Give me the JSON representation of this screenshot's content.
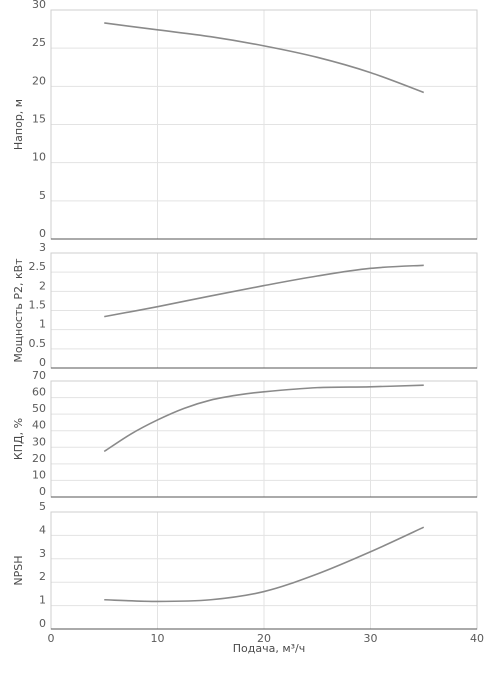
{
  "chart_data": [
    {
      "type": "line",
      "ylabel": "Напор, м",
      "ylim": [
        0,
        30
      ],
      "yticks": [
        0,
        5,
        10,
        15,
        20,
        25,
        30
      ],
      "xlim": [
        0,
        40
      ],
      "grid": true,
      "series": [
        {
          "x": [
            5,
            10,
            15,
            20,
            25,
            30,
            35
          ],
          "y": [
            28.3,
            27.4,
            26.5,
            25.3,
            23.8,
            21.8,
            19.2
          ]
        }
      ]
    },
    {
      "type": "line",
      "ylabel": "Мощность P2, кВт",
      "ylim": [
        0,
        3
      ],
      "yticks": [
        "0",
        "0.5",
        "1",
        "1.5",
        "2",
        "2.5",
        "3"
      ],
      "xlim": [
        0,
        40
      ],
      "grid": true,
      "series": [
        {
          "x": [
            5,
            10,
            15,
            20,
            25,
            30,
            35
          ],
          "y": [
            1.34,
            1.6,
            1.88,
            2.15,
            2.4,
            2.6,
            2.68
          ]
        }
      ]
    },
    {
      "type": "line",
      "ylabel": "КПД, %",
      "ylim": [
        0,
        70
      ],
      "yticks": [
        0,
        10,
        20,
        30,
        40,
        50,
        60,
        70
      ],
      "xlim": [
        0,
        40
      ],
      "grid": true,
      "series": [
        {
          "x": [
            5,
            7.5,
            10,
            12.5,
            15,
            17.5,
            20,
            25,
            30,
            35
          ],
          "y": [
            27.5,
            38,
            46.5,
            53.5,
            58.5,
            61.5,
            63.5,
            66,
            66.5,
            67.5
          ]
        }
      ]
    },
    {
      "type": "line",
      "ylabel": "NPSH",
      "ylim": [
        0,
        5
      ],
      "yticks": [
        0,
        1,
        2,
        3,
        4,
        5
      ],
      "xlim": [
        0,
        40
      ],
      "xticks": [
        0,
        10,
        20,
        30,
        40
      ],
      "xlabel": "Подача, м³/ч",
      "grid": true,
      "series": [
        {
          "x": [
            5,
            10,
            15,
            20,
            25,
            30,
            35
          ],
          "y": [
            1.25,
            1.18,
            1.25,
            1.6,
            2.35,
            3.3,
            4.35
          ]
        }
      ]
    }
  ]
}
